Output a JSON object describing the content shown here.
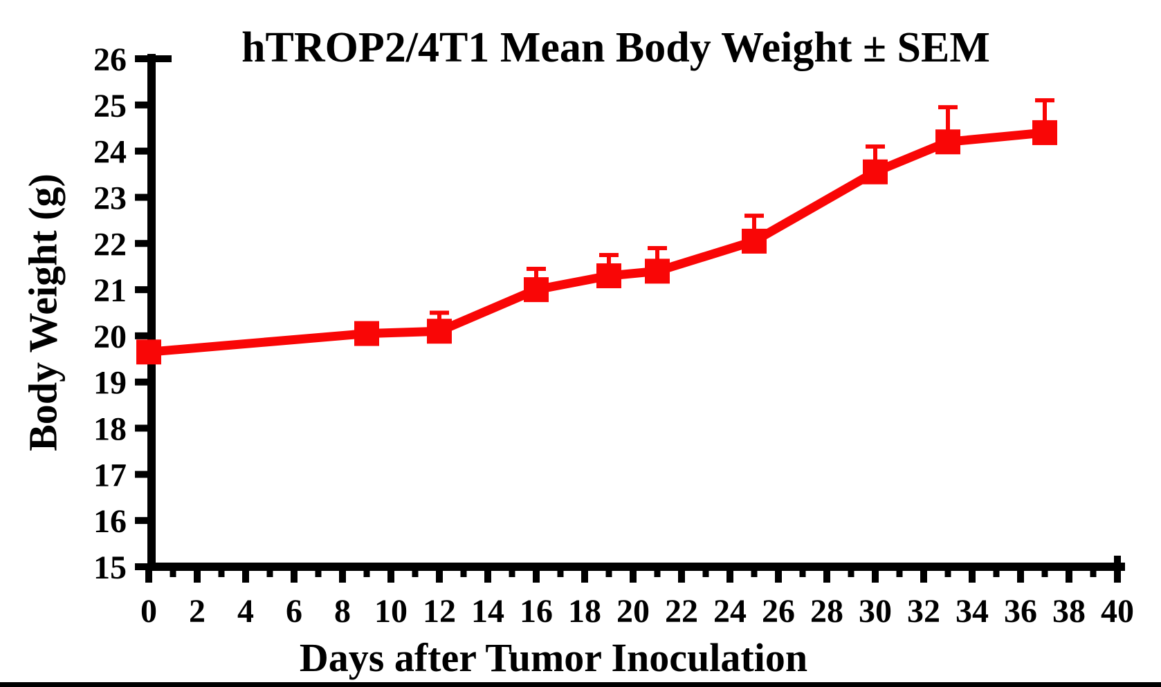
{
  "figure": {
    "title": "hTROP2/4T1 Mean Body Weight ± SEM",
    "bottom_bar_color": "#000000"
  },
  "chart_data": {
    "type": "line",
    "title": "hTROP2/4T1 Mean Body Weight ± SEM",
    "xlabel": "Days after Tumor Inoculation",
    "ylabel": "Body Weight (g)",
    "xlim": [
      0,
      40
    ],
    "ylim": [
      15,
      26
    ],
    "x_major_ticks": [
      0,
      2,
      4,
      6,
      8,
      10,
      12,
      14,
      16,
      18,
      20,
      22,
      24,
      26,
      28,
      30,
      32,
      34,
      36,
      38,
      40
    ],
    "x_minor_ticks": [
      1,
      3,
      5,
      7,
      9,
      11,
      13,
      15,
      17,
      19,
      21,
      23,
      25,
      27,
      29,
      31,
      33,
      35,
      37,
      39
    ],
    "y_ticks": [
      15,
      16,
      17,
      18,
      19,
      20,
      21,
      22,
      23,
      24,
      25,
      26
    ],
    "grid": false,
    "legend": "none",
    "axis_color": "#000000",
    "series": [
      {
        "name": "hTROP2/4T1",
        "color": "#f90606",
        "marker": "square",
        "error_bars": "SEM upper only",
        "x": [
          0,
          9,
          12,
          16,
          19,
          21,
          25,
          30,
          33,
          37
        ],
        "y": [
          19.65,
          20.05,
          20.1,
          21.0,
          21.3,
          21.4,
          22.05,
          23.55,
          24.2,
          24.4
        ],
        "sem": [
          0,
          0,
          0.4,
          0.45,
          0.45,
          0.5,
          0.55,
          0.55,
          0.75,
          0.7
        ]
      }
    ]
  }
}
